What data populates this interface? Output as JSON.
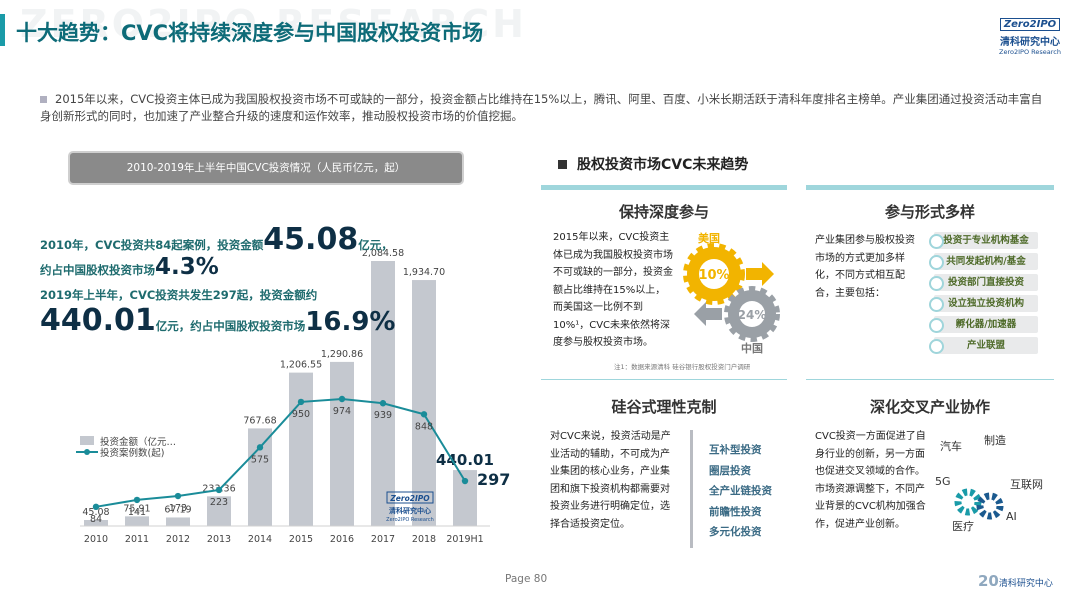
{
  "header": {
    "watermark": "ZERO2IPO RESEARCH",
    "title": "十大趋势：CVC将持续深度参与中国股权投资市场",
    "logo_box": "Zero2IPO",
    "logo_cn": "清科研究中心",
    "logo_en": "Zero2IPO Research"
  },
  "intro": "2015年以来，CVC投资主体已成为我国股权投资市场不可或缺的一部分，投资金额占比维持在15%以上，腾讯、阿里、百度、小米长期活跃于清科年度排名主榜单。产业集团通过投资活动丰富自身创新形式的同时，也加速了产业整合升级的速度和运作效率，推动股权投资市场的价值挖掘。",
  "chart_header": "2010-2019年上半年中国CVC投资情况（人民币亿元，起）",
  "callouts": {
    "line1_prefix": "2010年，CVC投资共84起案例，投资金额",
    "line1_big": "45.08",
    "line1_suffix": "亿元，",
    "line2_prefix": "约占中国股权投资市场",
    "line2_big": "4.3%",
    "line3": "2019年上半年，CVC投资共发生297起，投资金额约",
    "line4_big": "440.01",
    "line4_mid": "亿元，约占中国股权投资市场",
    "line4_pct": "16.9%"
  },
  "chart_data": {
    "type": "bar",
    "categories": [
      "2010",
      "2011",
      "2012",
      "2013",
      "2014",
      "2015",
      "2016",
      "2017",
      "2018",
      "2019H1"
    ],
    "series": [
      {
        "name": "投资金额（亿元…",
        "kind": "bar",
        "color": "#c4c8cf",
        "values": [
          45.08,
          75.91,
          67.19,
          233.36,
          767.68,
          1206.55,
          1290.86,
          2084.58,
          1934.7,
          440.01
        ],
        "labels": [
          "45.08",
          "75.91",
          "67.19",
          "233.36",
          "767.68",
          "1,206.55",
          "1,290.86",
          "2,084.58",
          "1,934.70",
          "440.01"
        ]
      },
      {
        "name": "投资案例数(起)",
        "kind": "line",
        "color": "#1a8c99",
        "values": [
          84,
          141,
          173,
          223,
          575,
          950,
          974,
          939,
          848,
          297
        ],
        "labels": [
          "84",
          "141",
          "173",
          "223",
          "575",
          "950",
          "974",
          "939",
          "848",
          "297"
        ]
      }
    ],
    "legend": "left-middle",
    "watermark_box": "Zero2IPO",
    "watermark_cn": "清科研究中心",
    "watermark_en": "Zero2IPO Research"
  },
  "trends": {
    "title": "股权投资市场CVC未来趋势",
    "p1": {
      "title": "保持深度参与",
      "text": "2015年以来，CVC投资主体已成为我国股权投资市场不可或缺的一部分，投资金额占比维持在15%以上，而美国这一比例不到10%¹，CVC未来依然将深度参与股权投资市场。",
      "us_label": "美国",
      "us_pct": "10%",
      "cn_label": "中国",
      "cn_pct": "24%",
      "note": "注1：数据来源清科 硅谷银行股权投资门户调研"
    },
    "p2": {
      "title": "参与形式多样",
      "text": "产业集团参与股权投资市场的方式更加多样化，不同方式相互配合，主要包括：",
      "tags": [
        "投资于专业机构基金",
        "共同发起机构/基金",
        "投资部门直接投资",
        "设立独立投资机构",
        "孵化器/加速器",
        "产业联盟"
      ]
    },
    "p3": {
      "title": "硅谷式理性克制",
      "text": "对CVC来说，投资活动是产业活动的辅助，不可成为产业集团的核心业务，产业集团和旗下投资机构都需要对投资业务进行明确定位，选择合适投资定位。",
      "items": [
        "互补型投资",
        "圈层投资",
        "全产业链投资",
        "前瞻性投资",
        "多元化投资"
      ]
    },
    "p4": {
      "title": "深化交叉产业协作",
      "text": "CVC投资一方面促进了自身行业的创新，另一方面也促进交叉领域的合作。市场资源调整下，不同产业背景的CVC机构加强合作，促进产业创新。",
      "labels": [
        "汽车",
        "制造",
        "5G",
        "互联网",
        "AI",
        "医疗"
      ]
    }
  },
  "footer": {
    "page": "Page 80",
    "logo": "清科研究中心"
  },
  "colors": {
    "accent": "#1a9ba8",
    "panel_bar": "#9fd6dc",
    "gear_yellow": "#f2b400",
    "gear_gray": "#9aa0a6"
  }
}
